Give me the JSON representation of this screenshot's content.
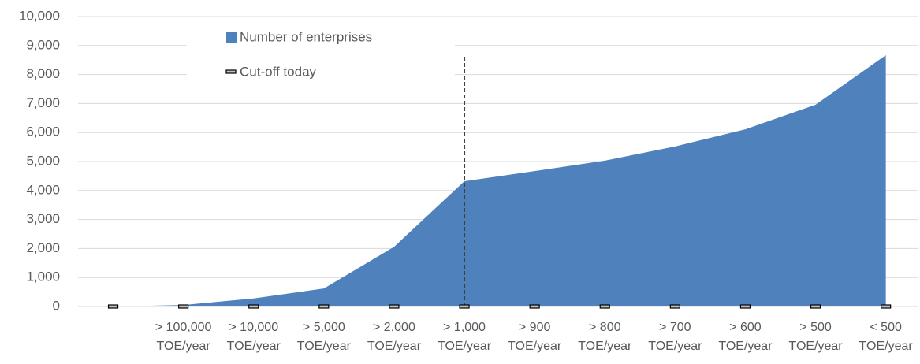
{
  "chart_data": {
    "type": "area",
    "categories": [
      null,
      "> 100,000 TOE/year",
      "> 10,000 TOE/year",
      "> 5,000 TOE/year",
      "> 2,000 TOE/year",
      "> 1,000 TOE/year",
      "> 900 TOE/year",
      "> 800 TOE/year",
      "> 700 TOE/year",
      "> 600 TOE/year",
      "> 500 TOE/year",
      "< 500 TOE/year"
    ],
    "series": [
      {
        "name": "Number of enterprises",
        "color": "#4f81bd",
        "values": [
          0,
          50,
          280,
          620,
          2060,
          4320,
          4670,
          5030,
          5520,
          6110,
          6960,
          8670
        ]
      },
      {
        "name": "Cut-off today",
        "color": "#404040",
        "values": [
          0,
          0,
          0,
          0,
          0,
          0,
          0,
          0,
          0,
          0,
          0,
          0
        ],
        "error_plus": [
          null,
          null,
          null,
          null,
          null,
          8620,
          null,
          null,
          null,
          null,
          null,
          null
        ]
      }
    ],
    "ylim": [
      0,
      10000
    ],
    "yticks": [
      0,
      {
        "value": 1000,
        "label": "1,000"
      },
      {
        "value": 2000,
        "label": "2,000"
      },
      {
        "value": 3000,
        "label": "3,000"
      },
      {
        "value": 4000,
        "label": "4,000"
      },
      {
        "value": 5000,
        "label": "5,000"
      },
      {
        "value": 6000,
        "label": "6,000"
      },
      {
        "value": 7000,
        "label": "7,000"
      },
      {
        "value": 8000,
        "label": "8,000"
      },
      {
        "value": 9000,
        "label": "9,000"
      },
      {
        "value": 10000,
        "label": "10,000"
      }
    ],
    "grid": true
  }
}
